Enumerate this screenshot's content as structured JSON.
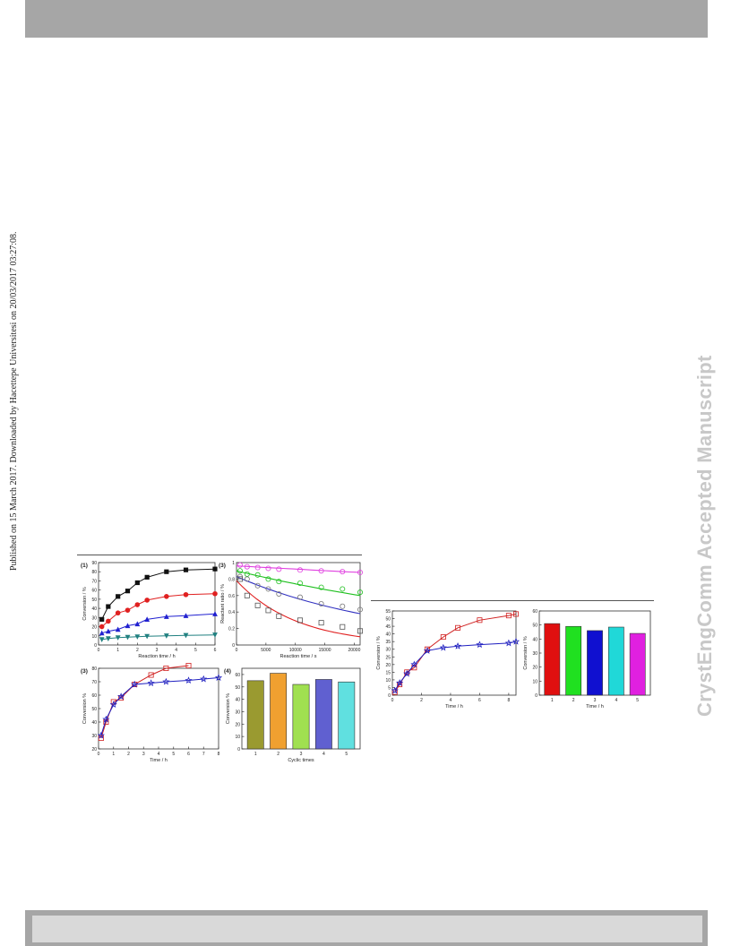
{
  "sidebar_note": "Published on 15 March 2017. Downloaded by Hacettepe Universitesi on 20/03/2017 03:27:08.",
  "watermark": "CrystEngComm Accepted Manuscript",
  "chart_data": [
    {
      "type": "line",
      "panel_label": "(1)",
      "xlabel": "Reaction time / h",
      "ylabel": "Conversion / %",
      "xlim": [
        0,
        6
      ],
      "ylim": [
        0,
        90
      ],
      "xticks": [
        0,
        1,
        2,
        3,
        4,
        5,
        6
      ],
      "yticks": [
        0,
        10,
        20,
        30,
        40,
        50,
        60,
        70,
        80,
        90
      ],
      "series": [
        {
          "color": "#111111",
          "marker": "square",
          "x": [
            0.17,
            0.5,
            1,
            1.5,
            2,
            2.5,
            3.5,
            4.5,
            6
          ],
          "y": [
            28,
            42,
            53,
            59,
            68,
            74,
            80,
            82,
            83
          ]
        },
        {
          "color": "#e02020",
          "marker": "circle",
          "x": [
            0.17,
            0.5,
            1,
            1.5,
            2,
            2.5,
            3.5,
            4.5,
            6
          ],
          "y": [
            20,
            26,
            35,
            38,
            44,
            49,
            53,
            55,
            56
          ]
        },
        {
          "color": "#2020d0",
          "marker": "triangle-up",
          "x": [
            0.17,
            0.5,
            1,
            1.5,
            2,
            2.5,
            3.5,
            4.5,
            6
          ],
          "y": [
            13,
            15,
            17,
            21,
            23,
            28,
            31,
            32,
            34
          ]
        },
        {
          "color": "#208080",
          "marker": "triangle-down",
          "x": [
            0.17,
            0.5,
            1,
            1.5,
            2,
            2.5,
            3.5,
            4.5,
            6
          ],
          "y": [
            6,
            7,
            8,
            8.5,
            9,
            9.5,
            10,
            10.5,
            11
          ]
        }
      ]
    },
    {
      "type": "scatter",
      "panel_label": "(3)",
      "xlabel": "Reaction time / s",
      "ylabel": "Reactant ratio / %",
      "xlim": [
        0,
        21000
      ],
      "ylim": [
        0,
        1.0
      ],
      "xticks": [
        0,
        5000,
        10000,
        15000,
        20000
      ],
      "yticks": [
        0.0,
        0.2,
        0.4,
        0.6,
        0.8,
        1.0
      ],
      "series": [
        {
          "color": "#e040e0",
          "x": [
            600,
            1800,
            3600,
            5400,
            7200,
            10800,
            14400,
            18000,
            21600
          ],
          "y": [
            0.97,
            0.95,
            0.94,
            0.93,
            0.92,
            0.91,
            0.9,
            0.89,
            0.88
          ],
          "fit": [
            0.96,
            0.88
          ]
        },
        {
          "color": "#20c020",
          "x": [
            600,
            1800,
            3600,
            5400,
            7200,
            10800,
            14400,
            18000,
            21600
          ],
          "y": [
            0.9,
            0.86,
            0.85,
            0.8,
            0.77,
            0.75,
            0.7,
            0.68,
            0.64
          ],
          "fit": [
            0.9,
            0.6
          ]
        },
        {
          "color": "#3030c0",
          "x": [
            600,
            1800,
            3600,
            5400,
            7200,
            10800,
            14400,
            18000,
            21600
          ],
          "y": [
            0.83,
            0.8,
            0.72,
            0.68,
            0.62,
            0.58,
            0.5,
            0.47,
            0.43
          ],
          "fit": [
            0.83,
            0.38
          ]
        },
        {
          "color": "#e02020",
          "x": [
            600,
            1800,
            3600,
            5400,
            7200,
            10800,
            14400,
            18000,
            21600
          ],
          "y": [
            0.8,
            0.6,
            0.48,
            0.42,
            0.35,
            0.3,
            0.27,
            0.22,
            0.17
          ],
          "fit": [
            0.78,
            0.1
          ]
        }
      ]
    },
    {
      "type": "line",
      "panel_label": "(3)",
      "xlabel": "Time / h",
      "ylabel": "Conversion %",
      "xlim": [
        0,
        8
      ],
      "ylim": [
        20,
        80
      ],
      "xticks": [
        0,
        1,
        2,
        3,
        4,
        5,
        6,
        7,
        8
      ],
      "yticks": [
        20,
        30,
        40,
        50,
        60,
        70,
        80
      ],
      "series": [
        {
          "color": "#d02020",
          "marker": "open-square",
          "x": [
            0.17,
            0.5,
            1,
            1.5,
            2.4,
            3.5,
            4.5,
            6
          ],
          "y": [
            28,
            40,
            55,
            58,
            68,
            75,
            80,
            82
          ]
        },
        {
          "color": "#2020c0",
          "marker": "open-star",
          "x": [
            0.17,
            0.5,
            1,
            1.5,
            2.4,
            3.5,
            4.5,
            6,
            7,
            8
          ],
          "y": [
            30,
            42,
            53,
            59,
            68,
            69,
            70,
            71,
            72,
            73
          ]
        }
      ]
    },
    {
      "type": "bar",
      "panel_label": "(4)",
      "xlabel": "Cyclic times",
      "ylabel": "Conversion %",
      "categories": [
        "1",
        "2",
        "3",
        "4",
        "5"
      ],
      "values": [
        55,
        61,
        52,
        56,
        54
      ],
      "colors": [
        "#9a9a30",
        "#f0a030",
        "#a0e050",
        "#6060d0",
        "#60e0e0"
      ],
      "ylim": [
        0,
        65
      ],
      "yticks": [
        0,
        10,
        20,
        30,
        40,
        50,
        60
      ]
    },
    {
      "type": "line",
      "xlabel": "Time / h",
      "ylabel": "Conversion / %",
      "xlim": [
        0,
        8.5
      ],
      "ylim": [
        0,
        55
      ],
      "xticks": [
        0,
        2,
        4,
        6,
        8
      ],
      "yticks": [
        0,
        5,
        10,
        15,
        20,
        25,
        30,
        35,
        40,
        45,
        50,
        55
      ],
      "series": [
        {
          "color": "#d02020",
          "marker": "open-square",
          "x": [
            0.17,
            0.5,
            1,
            1.5,
            2.4,
            3.5,
            4.5,
            6,
            8,
            8.5
          ],
          "y": [
            2,
            7,
            15,
            18,
            30,
            38,
            44,
            49,
            52,
            53
          ]
        },
        {
          "color": "#2020c0",
          "marker": "open-star",
          "x": [
            0.17,
            0.5,
            1,
            1.5,
            2.4,
            3.5,
            4.5,
            6,
            8,
            8.5
          ],
          "y": [
            3,
            8,
            14,
            20,
            29,
            31,
            32,
            33,
            34,
            35
          ]
        }
      ]
    },
    {
      "type": "bar",
      "xlabel": "Time / h",
      "ylabel": "Conversion / %",
      "categories": [
        "1",
        "2",
        "3",
        "4",
        "5"
      ],
      "values": [
        51,
        49,
        46,
        48.5,
        44
      ],
      "colors": [
        "#e01010",
        "#20e020",
        "#1010d0",
        "#20d8d8",
        "#e020e0"
      ],
      "ylim": [
        0,
        60
      ],
      "yticks": [
        0,
        10,
        20,
        30,
        40,
        50,
        60
      ]
    }
  ]
}
